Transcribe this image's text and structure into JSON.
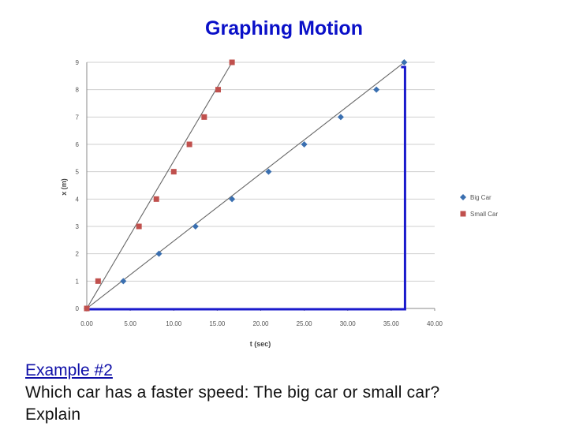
{
  "slide": {
    "title": "Graphing Motion",
    "example_label": "Example #2",
    "question_line1": "Which car has a faster speed: The big car or small car?",
    "question_line2": "Explain"
  },
  "colors": {
    "title": "#0a10c8",
    "big_car": "#3a6fb0",
    "small_car": "#c0504d",
    "highlight": "#1a1acc"
  },
  "chart_data": {
    "type": "scatter",
    "xlabel": "t (sec)",
    "ylabel": "x (m)",
    "xlim": [
      0,
      40
    ],
    "ylim": [
      0,
      9
    ],
    "xticks": [
      "0.00",
      "5.00",
      "10.00",
      "15.00",
      "20.00",
      "25.00",
      "30.00",
      "35.00",
      "40.00"
    ],
    "yticks": [
      "0",
      "1",
      "2",
      "3",
      "4",
      "5",
      "6",
      "7",
      "8",
      "9"
    ],
    "grid": "horizontal",
    "legend": "right",
    "series": [
      {
        "name": "Big Car",
        "marker": "diamond",
        "x": [
          0,
          4.2,
          8.3,
          12.5,
          16.7,
          20.9,
          25.0,
          29.2,
          33.3,
          36.5
        ],
        "y": [
          0,
          1,
          2,
          3,
          4,
          5,
          6,
          7,
          8,
          9
        ]
      },
      {
        "name": "Small Car",
        "marker": "square",
        "x": [
          0,
          1.3,
          6.0,
          8.0,
          10.0,
          11.8,
          13.5,
          15.1,
          16.7
        ],
        "y": [
          0,
          1,
          3,
          4,
          5,
          6,
          7,
          8,
          9
        ]
      }
    ],
    "trendlines": [
      {
        "series": "Big Car",
        "x": [
          0,
          36.5
        ],
        "y": [
          0,
          9
        ]
      },
      {
        "series": "Small Car",
        "x": [
          0,
          16.7
        ],
        "y": [
          0,
          9
        ]
      }
    ],
    "annotation": {
      "type": "bracket",
      "x": 36.5,
      "y": 9
    }
  }
}
